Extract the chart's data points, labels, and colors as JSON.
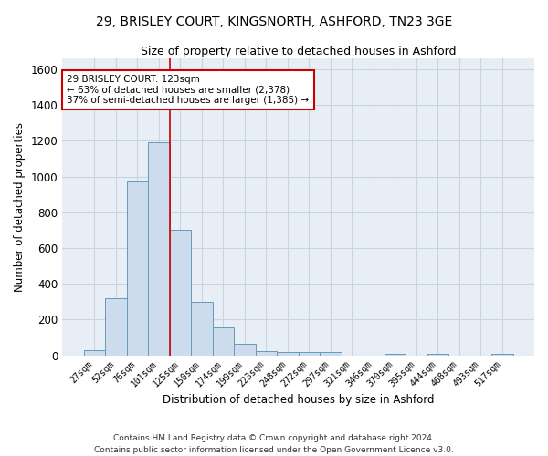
{
  "title1": "29, BRISLEY COURT, KINGSNORTH, ASHFORD, TN23 3GE",
  "title2": "Size of property relative to detached houses in Ashford",
  "xlabel": "Distribution of detached houses by size in Ashford",
  "ylabel": "Number of detached properties",
  "categories": [
    "27sqm",
    "52sqm",
    "76sqm",
    "101sqm",
    "125sqm",
    "150sqm",
    "174sqm",
    "199sqm",
    "223sqm",
    "248sqm",
    "272sqm",
    "297sqm",
    "321sqm",
    "346sqm",
    "370sqm",
    "395sqm",
    "444sqm",
    "468sqm",
    "493sqm",
    "517sqm"
  ],
  "values": [
    30,
    320,
    970,
    1190,
    700,
    300,
    155,
    65,
    25,
    20,
    20,
    20,
    0,
    0,
    10,
    0,
    10,
    0,
    0,
    10
  ],
  "bar_color": "#ccdcec",
  "bar_edge_color": "#6699bb",
  "bar_linewidth": 0.7,
  "ylim": [
    0,
    1660
  ],
  "yticks": [
    0,
    200,
    400,
    600,
    800,
    1000,
    1200,
    1400,
    1600
  ],
  "red_line_x": 3.5,
  "annotation_text1": "29 BRISLEY COURT: 123sqm",
  "annotation_text2": "← 63% of detached houses are smaller (2,378)",
  "annotation_text3": "37% of semi-detached houses are larger (1,385) →",
  "annotation_box_color": "#ffffff",
  "annotation_border_color": "#cc0000",
  "red_line_color": "#cc0000",
  "grid_color": "#c8d4e0",
  "background_color": "#e8eef5",
  "footer1": "Contains HM Land Registry data © Crown copyright and database right 2024.",
  "footer2": "Contains public sector information licensed under the Open Government Licence v3.0."
}
